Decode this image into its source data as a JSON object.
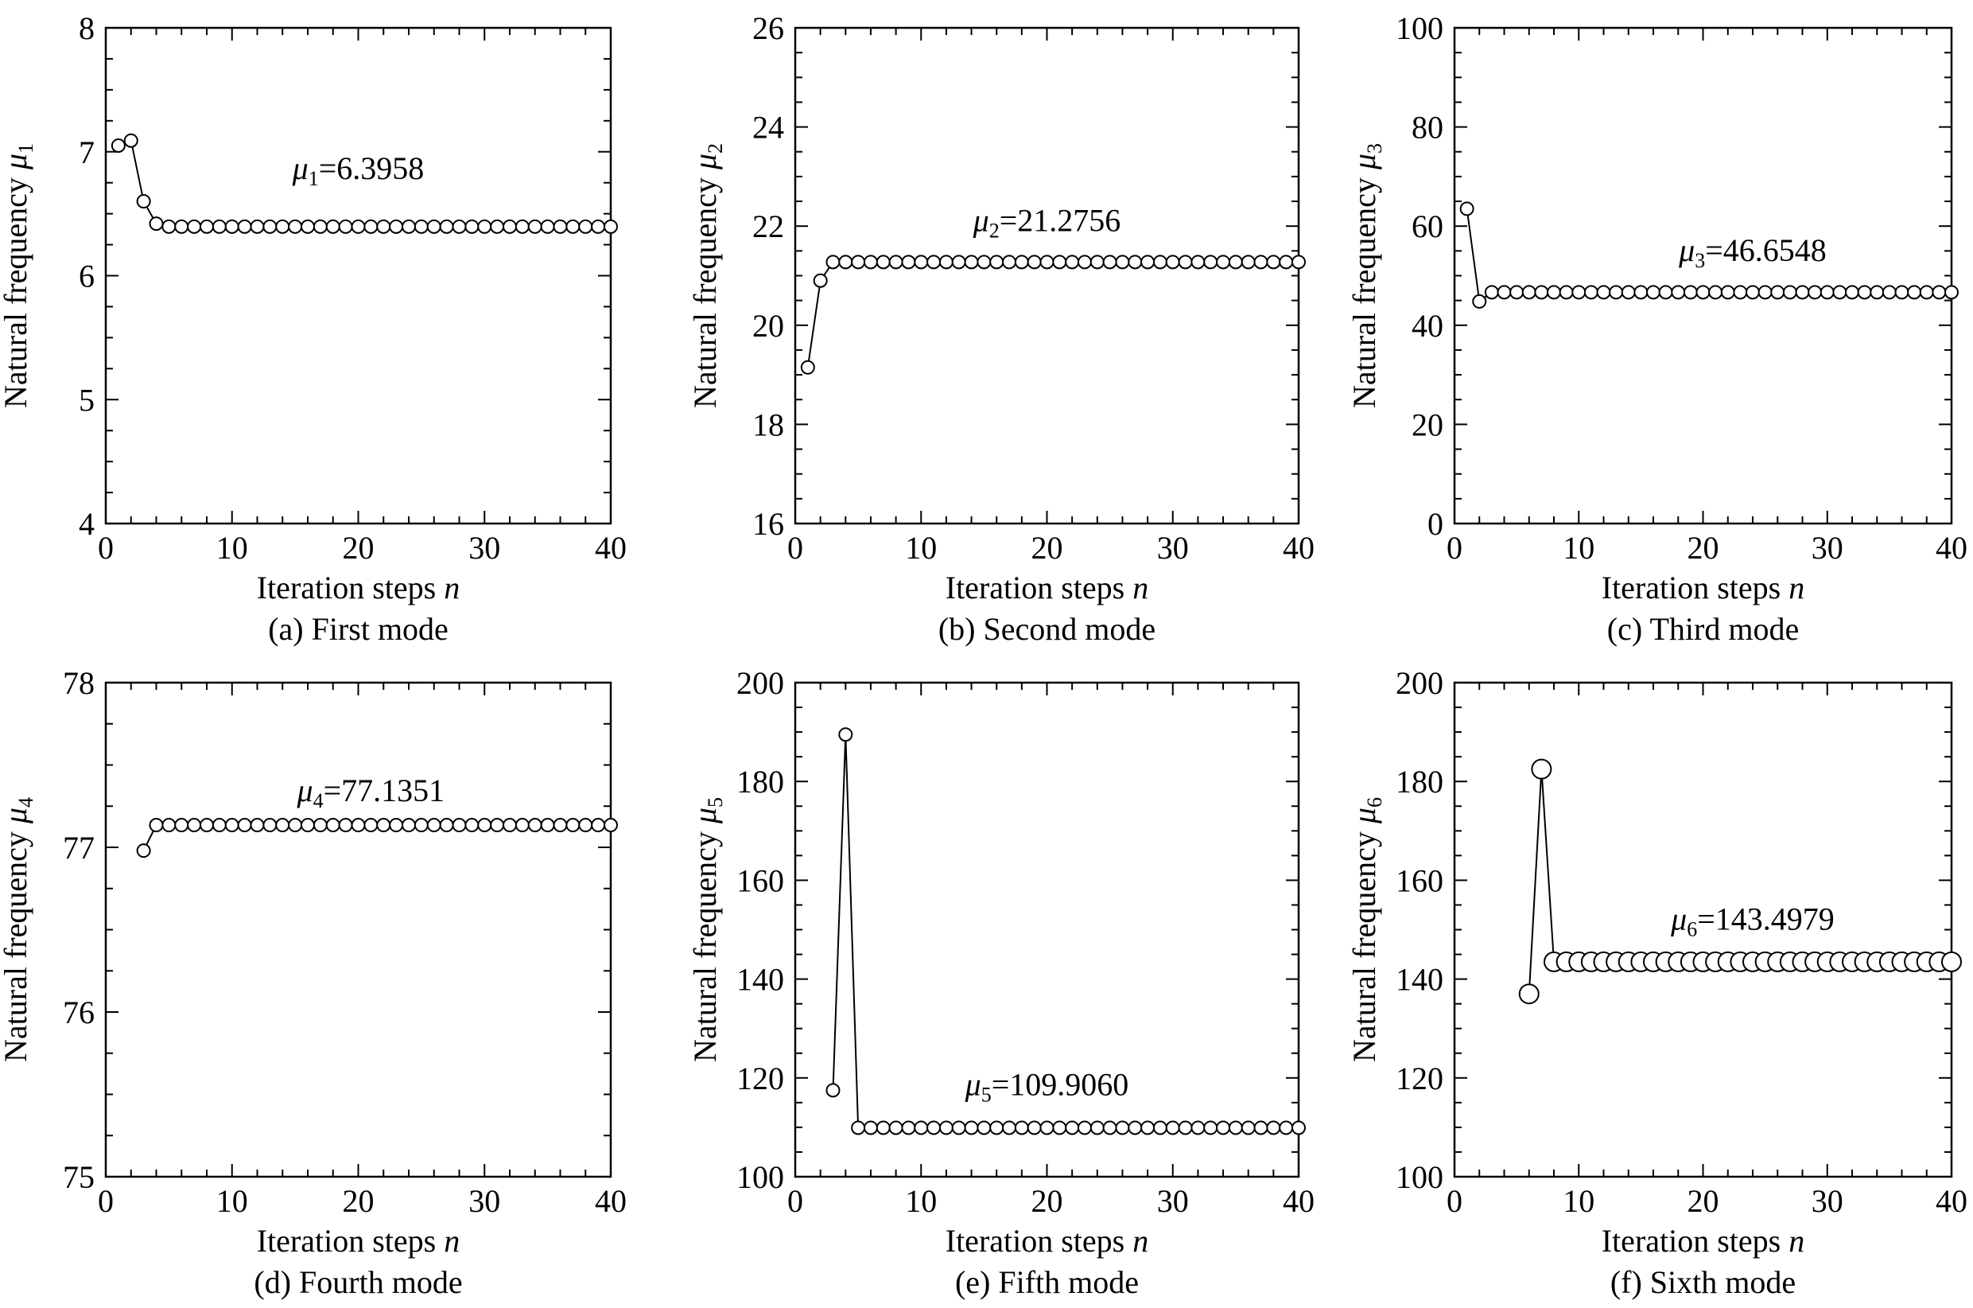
{
  "chart_data": [
    {
      "type": "line",
      "caption": "(a) First mode",
      "xlabel": "Iteration steps",
      "xlabel_var": "n",
      "ylabel": "Natural frequency",
      "ylabel_sym": "μ",
      "ylabel_sub": "1",
      "xlim": [
        0,
        40
      ],
      "ylim": [
        4,
        8
      ],
      "xticks": [
        0,
        10,
        20,
        30,
        40
      ],
      "yticks": [
        4,
        5,
        6,
        7,
        8
      ],
      "annotation": {
        "sym": "μ",
        "sub": "1",
        "text": "=6.3958",
        "x": 20,
        "y": 6.78
      },
      "marker": "open-circle",
      "x_start": 1,
      "values": [
        7.05,
        7.09,
        6.6,
        6.42,
        6.3958,
        6.3958,
        6.3958,
        6.3958,
        6.3958,
        6.3958,
        6.3958,
        6.3958,
        6.3958,
        6.3958,
        6.3958,
        6.3958,
        6.3958,
        6.3958,
        6.3958,
        6.3958,
        6.3958,
        6.3958,
        6.3958,
        6.3958,
        6.3958,
        6.3958,
        6.3958,
        6.3958,
        6.3958,
        6.3958,
        6.3958,
        6.3958,
        6.3958,
        6.3958,
        6.3958,
        6.3958,
        6.3958,
        6.3958,
        6.3958,
        6.3958
      ]
    },
    {
      "type": "line",
      "caption": "(b) Second mode",
      "xlabel": "Iteration steps",
      "xlabel_var": "n",
      "ylabel": "Natural frequency",
      "ylabel_sym": "μ",
      "ylabel_sub": "2",
      "xlim": [
        0,
        40
      ],
      "ylim": [
        16,
        26
      ],
      "xticks": [
        0,
        10,
        20,
        30,
        40
      ],
      "yticks": [
        16,
        18,
        20,
        22,
        24,
        26
      ],
      "annotation": {
        "sym": "μ",
        "sub": "2",
        "text": "=21.2756",
        "x": 20,
        "y": 21.9
      },
      "marker": "open-circle",
      "x_start": 1,
      "values": [
        19.15,
        20.9,
        21.2756,
        21.2756,
        21.2756,
        21.2756,
        21.2756,
        21.2756,
        21.2756,
        21.2756,
        21.2756,
        21.2756,
        21.2756,
        21.2756,
        21.2756,
        21.2756,
        21.2756,
        21.2756,
        21.2756,
        21.2756,
        21.2756,
        21.2756,
        21.2756,
        21.2756,
        21.2756,
        21.2756,
        21.2756,
        21.2756,
        21.2756,
        21.2756,
        21.2756,
        21.2756,
        21.2756,
        21.2756,
        21.2756,
        21.2756,
        21.2756,
        21.2756,
        21.2756,
        21.2756
      ]
    },
    {
      "type": "line",
      "caption": "(c) Third mode",
      "xlabel": "Iteration steps",
      "xlabel_var": "n",
      "ylabel": "Natural frequency",
      "ylabel_sym": "μ",
      "ylabel_sub": "3",
      "xlim": [
        0,
        40
      ],
      "ylim": [
        0,
        100
      ],
      "xticks": [
        0,
        10,
        20,
        30,
        40
      ],
      "yticks": [
        0,
        20,
        40,
        60,
        80,
        100
      ],
      "annotation": {
        "sym": "μ",
        "sub": "3",
        "text": "=46.6548",
        "x": 24,
        "y": 53
      },
      "marker": "open-circle",
      "x_start": 1,
      "values": [
        63.5,
        44.8,
        46.6548,
        46.6548,
        46.6548,
        46.6548,
        46.6548,
        46.6548,
        46.6548,
        46.6548,
        46.6548,
        46.6548,
        46.6548,
        46.6548,
        46.6548,
        46.6548,
        46.6548,
        46.6548,
        46.6548,
        46.6548,
        46.6548,
        46.6548,
        46.6548,
        46.6548,
        46.6548,
        46.6548,
        46.6548,
        46.6548,
        46.6548,
        46.6548,
        46.6548,
        46.6548,
        46.6548,
        46.6548,
        46.6548,
        46.6548,
        46.6548,
        46.6548,
        46.6548,
        46.6548
      ]
    },
    {
      "type": "line",
      "caption": "(d) Fourth mode",
      "xlabel": "Iteration steps",
      "xlabel_var": "n",
      "ylabel": "Natural frequency",
      "ylabel_sym": "μ",
      "ylabel_sub": "4",
      "xlim": [
        0,
        40
      ],
      "ylim": [
        75,
        78
      ],
      "xticks": [
        0,
        10,
        20,
        30,
        40
      ],
      "yticks": [
        75,
        76,
        77,
        78
      ],
      "annotation": {
        "sym": "μ",
        "sub": "4",
        "text": "=77.1351",
        "x": 21,
        "y": 77.28
      },
      "marker": "open-circle",
      "x_start": 3,
      "values": [
        76.98,
        77.1351,
        77.1351,
        77.1351,
        77.1351,
        77.1351,
        77.1351,
        77.1351,
        77.1351,
        77.1351,
        77.1351,
        77.1351,
        77.1351,
        77.1351,
        77.1351,
        77.1351,
        77.1351,
        77.1351,
        77.1351,
        77.1351,
        77.1351,
        77.1351,
        77.1351,
        77.1351,
        77.1351,
        77.1351,
        77.1351,
        77.1351,
        77.1351,
        77.1351,
        77.1351,
        77.1351,
        77.1351,
        77.1351,
        77.1351,
        77.1351,
        77.1351,
        77.1351
      ]
    },
    {
      "type": "line",
      "caption": "(e) Fifth mode",
      "xlabel": "Iteration steps",
      "xlabel_var": "n",
      "ylabel": "Natural frequency",
      "ylabel_sym": "μ",
      "ylabel_sub": "5",
      "xlim": [
        0,
        40
      ],
      "ylim": [
        100,
        200
      ],
      "xticks": [
        0,
        10,
        20,
        30,
        40
      ],
      "yticks": [
        100,
        120,
        140,
        160,
        180,
        200
      ],
      "annotation": {
        "sym": "μ",
        "sub": "5",
        "text": "=109.9060",
        "x": 20,
        "y": 116.5
      },
      "marker": "open-circle",
      "x_start": 3,
      "values": [
        117.5,
        189.5,
        109.906,
        109.906,
        109.906,
        109.906,
        109.906,
        109.906,
        109.906,
        109.906,
        109.906,
        109.906,
        109.906,
        109.906,
        109.906,
        109.906,
        109.906,
        109.906,
        109.906,
        109.906,
        109.906,
        109.906,
        109.906,
        109.906,
        109.906,
        109.906,
        109.906,
        109.906,
        109.906,
        109.906,
        109.906,
        109.906,
        109.906,
        109.906,
        109.906,
        109.906,
        109.906,
        109.906
      ]
    },
    {
      "type": "line",
      "caption": "(f) Sixth mode",
      "xlabel": "Iteration steps",
      "xlabel_var": "n",
      "ylabel": "Natural frequency",
      "ylabel_sym": "μ",
      "ylabel_sub": "6",
      "xlim": [
        0,
        40
      ],
      "ylim": [
        100,
        200
      ],
      "xticks": [
        0,
        10,
        20,
        30,
        40
      ],
      "yticks": [
        100,
        120,
        140,
        160,
        180,
        200
      ],
      "annotation": {
        "sym": "μ",
        "sub": "6",
        "text": "=143.4979",
        "x": 24,
        "y": 150
      },
      "marker": "open-circle-large",
      "x_start": 6,
      "values": [
        137,
        182.5,
        143.4979,
        143.4979,
        143.4979,
        143.4979,
        143.4979,
        143.4979,
        143.4979,
        143.4979,
        143.4979,
        143.4979,
        143.4979,
        143.4979,
        143.4979,
        143.4979,
        143.4979,
        143.4979,
        143.4979,
        143.4979,
        143.4979,
        143.4979,
        143.4979,
        143.4979,
        143.4979,
        143.4979,
        143.4979,
        143.4979,
        143.4979,
        143.4979,
        143.4979,
        143.4979,
        143.4979,
        143.4979,
        143.4979
      ]
    }
  ]
}
